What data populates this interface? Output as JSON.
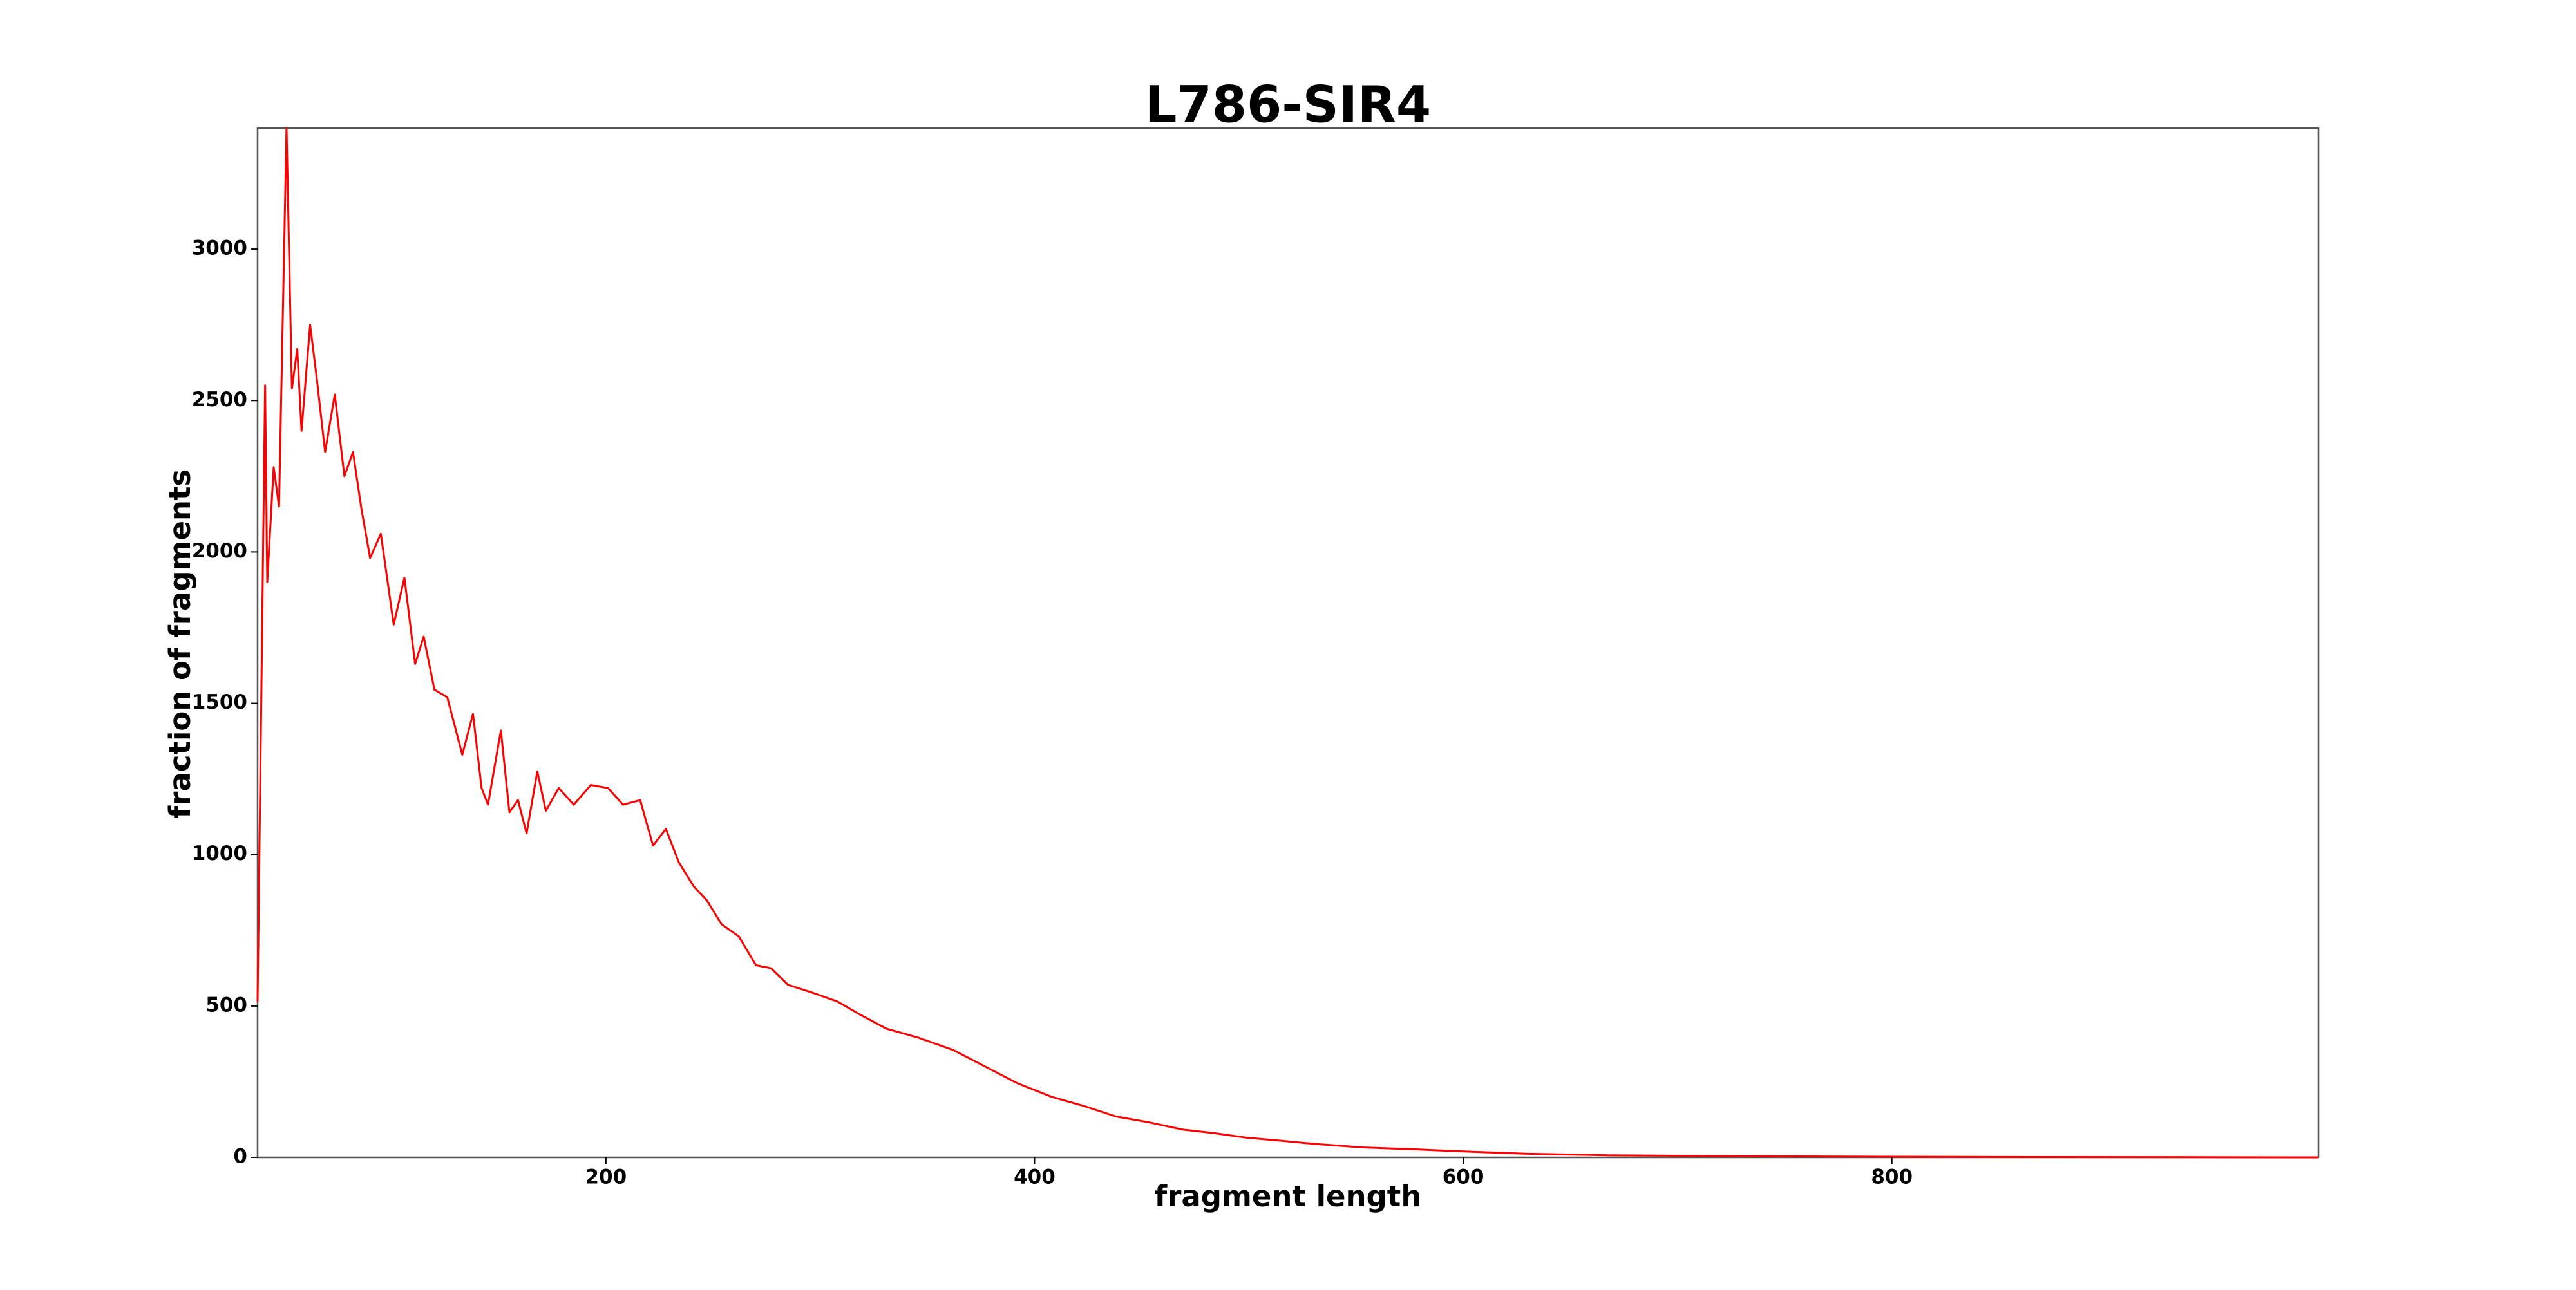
{
  "chart_data": {
    "type": "line",
    "title": "L786-SIR4",
    "x_label": "fragment length",
    "y_label": "fraction of fragments",
    "x": [
      37.5,
      41,
      42,
      45,
      47.5,
      51,
      53.5,
      56,
      58,
      62,
      65,
      69,
      73.5,
      78,
      82,
      86,
      90,
      95,
      101,
      106,
      111,
      115,
      120,
      126,
      133,
      138,
      142,
      145,
      151,
      155,
      159,
      163,
      168,
      172,
      178,
      185,
      193,
      201,
      208,
      216,
      222,
      228,
      234,
      241,
      247,
      254,
      262,
      270,
      277,
      285,
      296,
      308,
      319,
      331,
      346,
      362,
      377,
      392,
      408,
      423,
      438,
      454,
      469,
      484,
      499,
      515,
      530,
      553,
      576,
      599,
      630,
      668,
      722,
      798,
      875,
      999
    ],
    "series": [
      {
        "name": "L786-SIR4",
        "color": "#ff0000",
        "values": [
          515,
          2550,
          1900,
          2280,
          2150,
          3400,
          2540,
          2670,
          2400,
          2750,
          2580,
          2330,
          2520,
          2250,
          2330,
          2140,
          1980,
          2060,
          1760,
          1915,
          1630,
          1720,
          1545,
          1520,
          1330,
          1465,
          1220,
          1165,
          1410,
          1140,
          1180,
          1070,
          1275,
          1145,
          1220,
          1165,
          1230,
          1220,
          1165,
          1180,
          1030,
          1085,
          975,
          895,
          850,
          770,
          730,
          635,
          625,
          570,
          545,
          515,
          470,
          425,
          395,
          355,
          300,
          245,
          200,
          170,
          135,
          115,
          92,
          80,
          65,
          55,
          45,
          33,
          27,
          20,
          12,
          7,
          4,
          2,
          1,
          0
        ]
      }
    ],
    "xlim": [
      37.5,
      999
    ],
    "ylim": [
      0,
      3400
    ],
    "xticks": [
      200,
      400,
      600,
      800
    ],
    "yticks": [
      0,
      500,
      1000,
      1500,
      2000,
      2500,
      3000
    ]
  }
}
